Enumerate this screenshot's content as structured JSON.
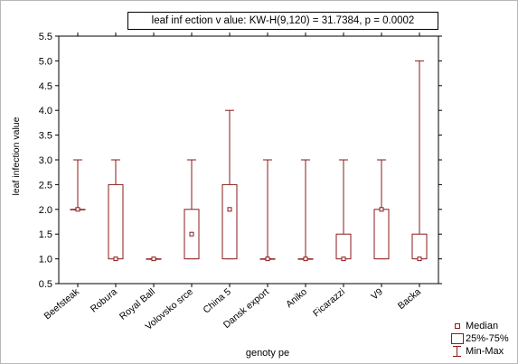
{
  "chart_data": {
    "type": "boxplot",
    "title": "leaf  inf ection v alue:   KW-H(9,120) = 31.7384,  p = 0.0002",
    "xlabel": "genoty pe",
    "ylabel": "leaf infection value",
    "ylim": [
      0.5,
      5.5
    ],
    "yticks": [
      "0.5",
      "1.0",
      "1.5",
      "2.0",
      "2.5",
      "3.0",
      "3.5",
      "4.0",
      "4.5",
      "5.0",
      "5.5"
    ],
    "categories": [
      "Beefsteak",
      "Robura",
      "Royal Ball",
      "Volovsko srce",
      "China 5",
      "Dansk export",
      "Aniko",
      "Ficarazzi",
      "V9",
      "Backa"
    ],
    "median": [
      2.0,
      1.0,
      1.0,
      1.5,
      2.0,
      1.0,
      1.0,
      1.0,
      2.0,
      1.0
    ],
    "q1": [
      2.0,
      1.0,
      1.0,
      1.0,
      1.0,
      1.0,
      1.0,
      1.0,
      1.0,
      1.0
    ],
    "q3": [
      2.0,
      2.5,
      1.0,
      2.0,
      2.5,
      1.0,
      1.0,
      1.5,
      2.0,
      1.5
    ],
    "min": [
      2.0,
      1.0,
      1.0,
      1.0,
      1.0,
      1.0,
      1.0,
      1.0,
      1.0,
      1.0
    ],
    "max": [
      3.0,
      3.0,
      1.0,
      3.0,
      4.0,
      3.0,
      3.0,
      3.0,
      3.0,
      5.0
    ],
    "legend": [
      "Median",
      "25%-75%",
      "Min-Max"
    ],
    "legend_position": "bottom-right",
    "grid": false,
    "color": "#8b1a1a"
  }
}
